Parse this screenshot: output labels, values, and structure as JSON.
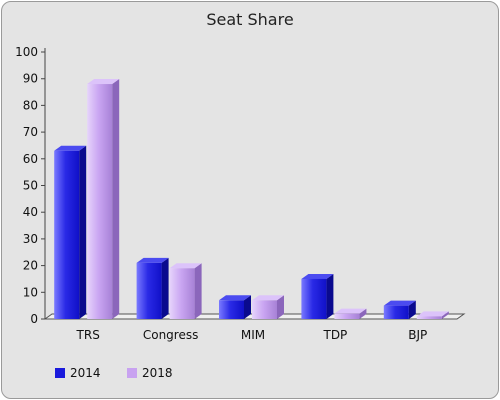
{
  "chart_data": {
    "type": "bar",
    "title": "Seat Share",
    "xlabel": "",
    "ylabel": "",
    "categories": [
      "TRS",
      "Congress",
      "MIM",
      "TDP",
      "BJP"
    ],
    "series": [
      {
        "name": "2014",
        "values": [
          63,
          21,
          7,
          15,
          5
        ],
        "color": "#1a1adc"
      },
      {
        "name": "2018",
        "values": [
          88,
          19,
          7,
          2,
          1
        ],
        "color": "#c8a2f0"
      }
    ],
    "ylim": [
      0,
      100
    ],
    "yticks": [
      0,
      10,
      20,
      30,
      40,
      50,
      60,
      70,
      80,
      90,
      100
    ],
    "grid": false,
    "legend_position": "bottom-left",
    "style": "3d-bars"
  }
}
